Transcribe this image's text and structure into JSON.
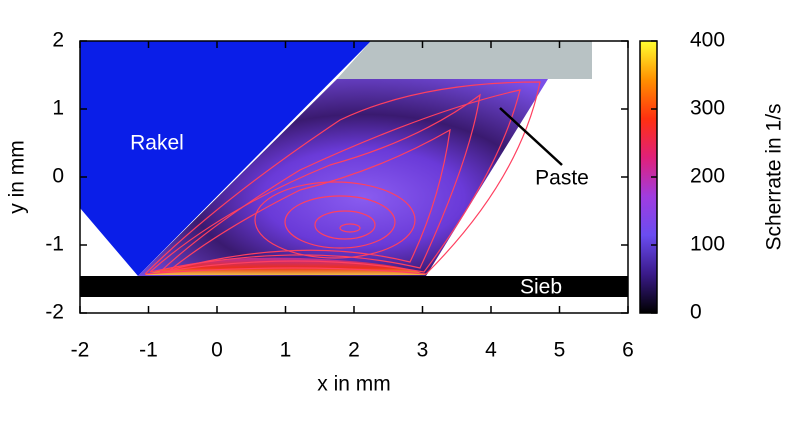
{
  "chart_data": {
    "type": "heatmap",
    "x_label": "x in mm",
    "y_label": "y in mm",
    "xlim": [
      -2,
      6
    ],
    "xticks": [
      -2,
      -1,
      0,
      1,
      2,
      3,
      4,
      5,
      6
    ],
    "ylim": [
      -2,
      2
    ],
    "yticks": [
      -2,
      -1,
      0,
      1,
      2
    ],
    "annotations": [
      "Rakel",
      "Paste",
      "Sieb"
    ],
    "colorbar": {
      "label": "Scherrate in 1/s",
      "lim": [
        0,
        400
      ],
      "ticks": [
        0,
        100,
        200,
        300,
        400
      ],
      "colors": [
        "#000000",
        "#3a1a8a",
        "#6a4cf0",
        "#a03ce0",
        "#e0207a",
        "#ff3010",
        "#ff9000",
        "#ffff30"
      ]
    }
  }
}
